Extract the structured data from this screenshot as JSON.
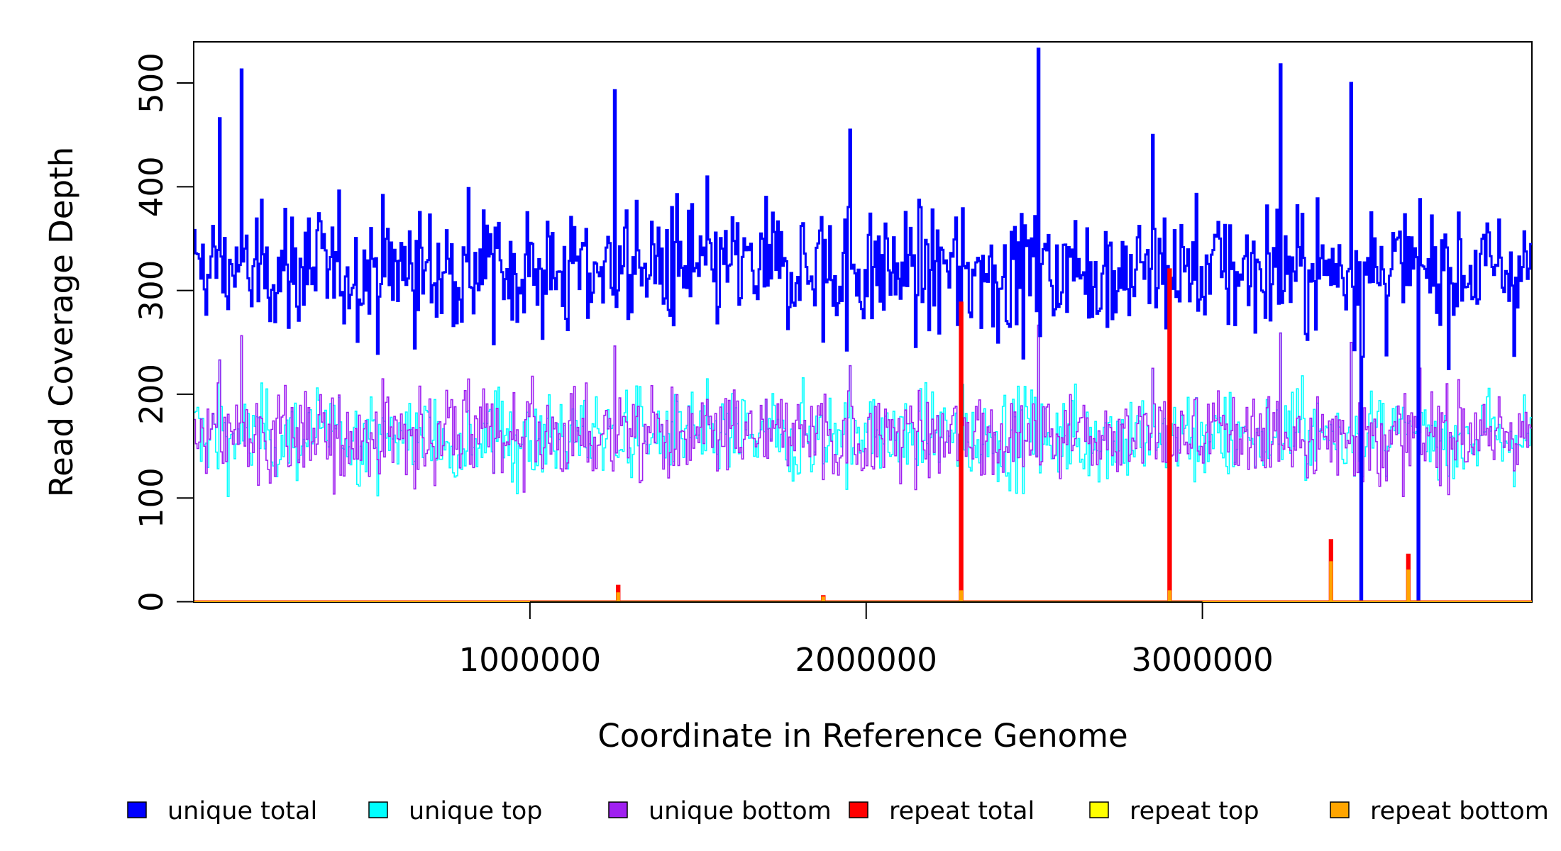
{
  "chart_data": {
    "type": "line",
    "xlabel": "Coordinate in Reference Genome",
    "ylabel": "Read Coverage Depth",
    "xlim": [
      0,
      3980000
    ],
    "ylim": [
      0,
      540
    ],
    "x_ticks": [
      1000000,
      2000000,
      3000000
    ],
    "x_tick_labels": [
      "1000000",
      "2000000",
      "3000000"
    ],
    "y_ticks": [
      0,
      100,
      200,
      300,
      400,
      500
    ],
    "y_tick_labels": [
      "0",
      "100",
      "200",
      "300",
      "400",
      "500"
    ],
    "grid": false,
    "legend_position": "bottom",
    "bin_size": 5000,
    "series": [
      {
        "name": "unique total",
        "color": "#0000FF",
        "mean": 320,
        "spread": 52
      },
      {
        "name": "unique top",
        "color": "#00FFFF",
        "mean": 160,
        "spread": 32
      },
      {
        "name": "unique bottom",
        "color": "#A020F0",
        "mean": 160,
        "spread": 32
      },
      {
        "name": "repeat total",
        "color": "#FF0000",
        "mean": 0,
        "spread": 0
      },
      {
        "name": "repeat top",
        "color": "#FFFF00",
        "mean": 0,
        "spread": 0
      },
      {
        "name": "repeat bottom",
        "color": "#FFA500",
        "mean": 0,
        "spread": 0
      }
    ],
    "unique_total_peaks": [
      {
        "x": 140000,
        "y": 513
      },
      {
        "x": 1250000,
        "y": 493
      },
      {
        "x": 1950000,
        "y": 455
      },
      {
        "x": 2510000,
        "y": 533
      },
      {
        "x": 3230000,
        "y": 518
      },
      {
        "x": 3440000,
        "y": 500
      },
      {
        "x": 2850000,
        "y": 450
      },
      {
        "x": 75000,
        "y": 466
      }
    ],
    "coverage_dropouts": [
      {
        "x": 2280000,
        "y": 0
      },
      {
        "x": 2900000,
        "y": 0
      },
      {
        "x": 3470000,
        "y": 0
      },
      {
        "x": 3640000,
        "y": 0
      }
    ],
    "repeat_peaks": [
      {
        "x": 1260000,
        "total": 15,
        "bottom": 8
      },
      {
        "x": 1870000,
        "total": 5,
        "bottom": 4
      },
      {
        "x": 2280000,
        "total": 288,
        "bottom": 10
      },
      {
        "x": 2900000,
        "total": 320,
        "bottom": 10
      },
      {
        "x": 3380000,
        "total": 59,
        "bottom": 38
      },
      {
        "x": 3610000,
        "total": 45,
        "bottom": 30
      }
    ],
    "legend": [
      {
        "label": "unique total",
        "color": "#0000FF"
      },
      {
        "label": "unique top",
        "color": "#00FFFF"
      },
      {
        "label": "unique bottom",
        "color": "#A020F0"
      },
      {
        "label": "repeat total",
        "color": "#FF0000"
      },
      {
        "label": "repeat top",
        "color": "#FFFF00"
      },
      {
        "label": "repeat bottom",
        "color": "#FFA500"
      }
    ]
  }
}
